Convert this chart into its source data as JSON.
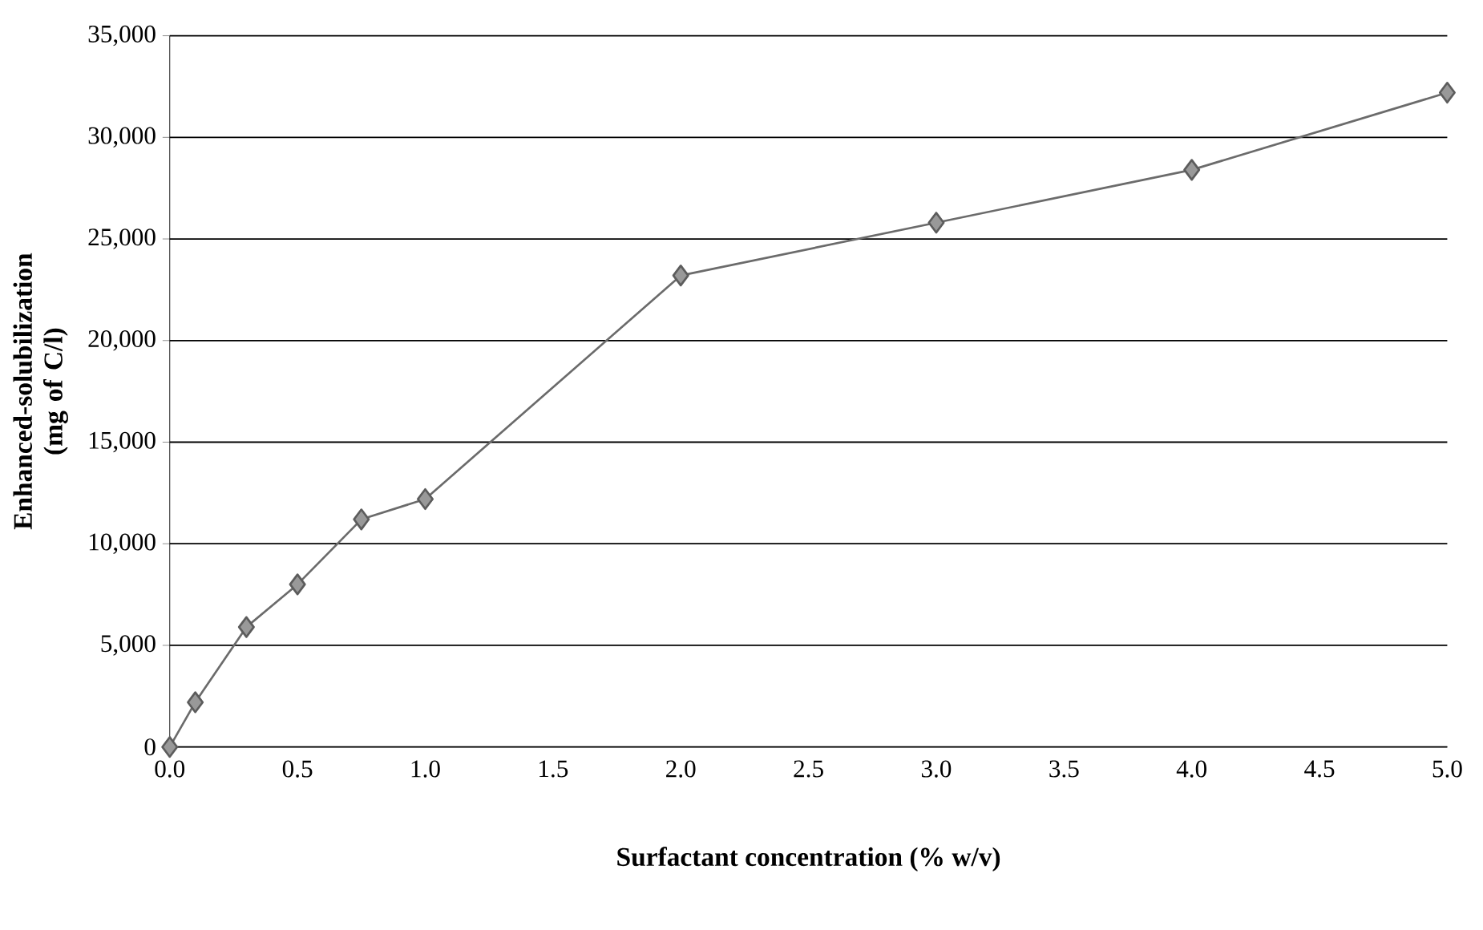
{
  "chart_data": {
    "type": "line",
    "xlabel": "Surfactant concentration (% w/v)",
    "ylabel": "Enhanced-solubilization (mg of C/l)",
    "x": [
      0,
      0.1,
      0.3,
      0.5,
      0.75,
      1.0,
      2.0,
      3.0,
      4.0,
      5.0
    ],
    "values": [
      0,
      2200,
      5900,
      8000,
      11200,
      12200,
      23200,
      25800,
      28400,
      32200
    ],
    "color": "#999999",
    "marker": "diamond",
    "line_style": "solid",
    "grid": "y",
    "xlim": [
      0,
      5
    ],
    "xticks": [
      {
        "value": 0,
        "label": "0.0"
      },
      0.5,
      {
        "value": 1,
        "label": "1.0"
      },
      1.5,
      {
        "value": 2,
        "label": "2.0"
      },
      2.5,
      {
        "value": 3,
        "label": "3.0"
      },
      3.5,
      {
        "value": 4,
        "label": "4.0"
      },
      4.5,
      {
        "value": 5,
        "label": "5.0"
      }
    ],
    "ylim": [
      0,
      35000
    ],
    "yticks": [
      {
        "value": 0,
        "label": "0"
      },
      {
        "value": 5000,
        "label": "5,000"
      },
      {
        "value": 10000,
        "label": "10,000"
      },
      {
        "value": 15000,
        "label": "15,000"
      },
      {
        "value": 20000,
        "label": "20,000"
      },
      {
        "value": 25000,
        "label": "25,000"
      },
      {
        "value": 30000,
        "label": "30,000"
      },
      {
        "value": 35000,
        "label": "35,000"
      }
    ]
  }
}
